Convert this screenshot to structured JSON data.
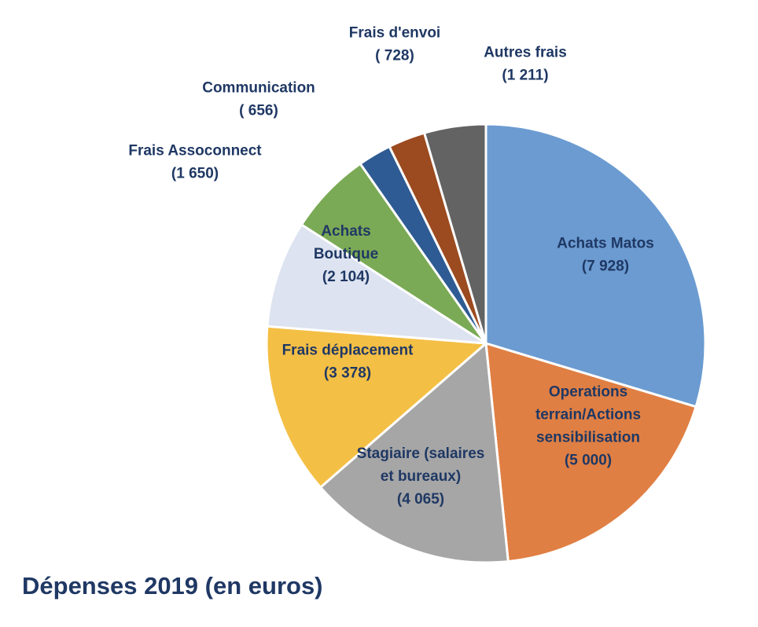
{
  "chart_data": {
    "type": "pie",
    "title": "Dépenses 2019 (en euros)",
    "slices": [
      {
        "label_lines": [
          "Achats Matos",
          "(7 928)"
        ],
        "value": 7928,
        "color": "#6b9bd1"
      },
      {
        "label_lines": [
          "Operations",
          "terrain/Actions",
          "sensibilisation",
          "(5 000)"
        ],
        "value": 5000,
        "color": "#e07f43"
      },
      {
        "label_lines": [
          "Stagiaire (salaires",
          "et bureaux)",
          "(4 065)"
        ],
        "value": 4065,
        "color": "#a6a6a6"
      },
      {
        "label_lines": [
          "Frais déplacement",
          "(3 378)"
        ],
        "value": 3378,
        "color": "#f4bf45"
      },
      {
        "label_lines": [
          "Achats",
          "Boutique",
          "(2 104)"
        ],
        "value": 2104,
        "color": "#dde3f0"
      },
      {
        "label_lines": [
          "Frais Assoconnect",
          "(1 650)"
        ],
        "value": 1650,
        "color": "#7aaa55"
      },
      {
        "label_lines": [
          "Communication",
          "( 656)"
        ],
        "value": 656,
        "color": "#2e5b93"
      },
      {
        "label_lines": [
          "Frais d'envoi",
          "( 728)"
        ],
        "value": 728,
        "color": "#9c4a1f"
      },
      {
        "label_lines": [
          "Autres frais",
          "(1 211)"
        ],
        "value": 1211,
        "color": "#636363"
      }
    ],
    "start_angle_deg": 0,
    "direction": "clockwise",
    "legend": "none"
  }
}
